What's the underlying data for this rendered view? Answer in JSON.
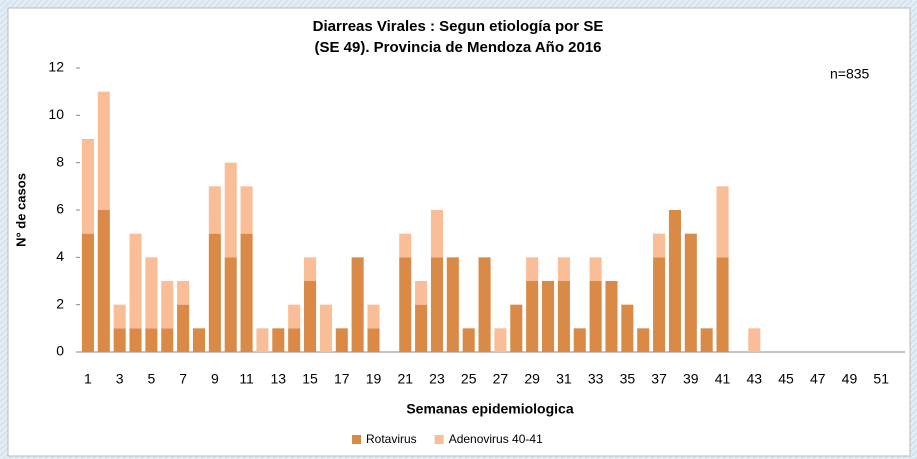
{
  "chart_data": {
    "type": "stacked_bar",
    "title": "Diarreas Virales : Segun etiología por SE",
    "subtitle": "(SE 49). Provincia de  Mendoza Año 2016",
    "annotation": "n=835",
    "x_label": "Semanas epidemiologica",
    "y_label": "N° de casos",
    "categories": [
      "1",
      null,
      "3",
      null,
      "5",
      null,
      "7",
      null,
      "9",
      null,
      "11",
      null,
      "13",
      null,
      "15",
      null,
      "17",
      null,
      "19",
      null,
      "21",
      null,
      "23",
      null,
      "25",
      null,
      "27",
      null,
      "29",
      null,
      "31",
      null,
      "33",
      null,
      "35",
      null,
      "37",
      null,
      "39",
      null,
      "41",
      null,
      "43",
      null,
      "45",
      null,
      "47",
      null,
      "49",
      null,
      "51",
      null
    ],
    "series": [
      {
        "name": "Rotavirus",
        "color": "#d98a47",
        "values": [
          5,
          6,
          1,
          1,
          1,
          1,
          2,
          1,
          5,
          4,
          5,
          0,
          1,
          1,
          3,
          0,
          1,
          4,
          1,
          0,
          4,
          2,
          4,
          4,
          1,
          4,
          0,
          2,
          3,
          3,
          3,
          1,
          3,
          3,
          2,
          1,
          4,
          6,
          5,
          1,
          4,
          0,
          0,
          0,
          0,
          0,
          0,
          0,
          0,
          0,
          0,
          0
        ]
      },
      {
        "name": "Adenovirus 40-41",
        "color": "#f9bd98",
        "values": [
          4,
          5,
          1,
          4,
          3,
          2,
          1,
          0,
          2,
          4,
          2,
          1,
          0,
          1,
          1,
          2,
          0,
          0,
          1,
          0,
          1,
          1,
          2,
          0,
          0,
          0,
          1,
          0,
          1,
          0,
          1,
          0,
          1,
          0,
          0,
          0,
          1,
          0,
          0,
          0,
          3,
          0,
          1,
          0,
          0,
          0,
          0,
          0,
          0,
          0,
          0,
          0
        ]
      }
    ],
    "ylim": [
      0,
      12
    ],
    "yticks": [
      0,
      2,
      4,
      6,
      8,
      10,
      12
    ],
    "grid": false,
    "legend": "bottom"
  }
}
